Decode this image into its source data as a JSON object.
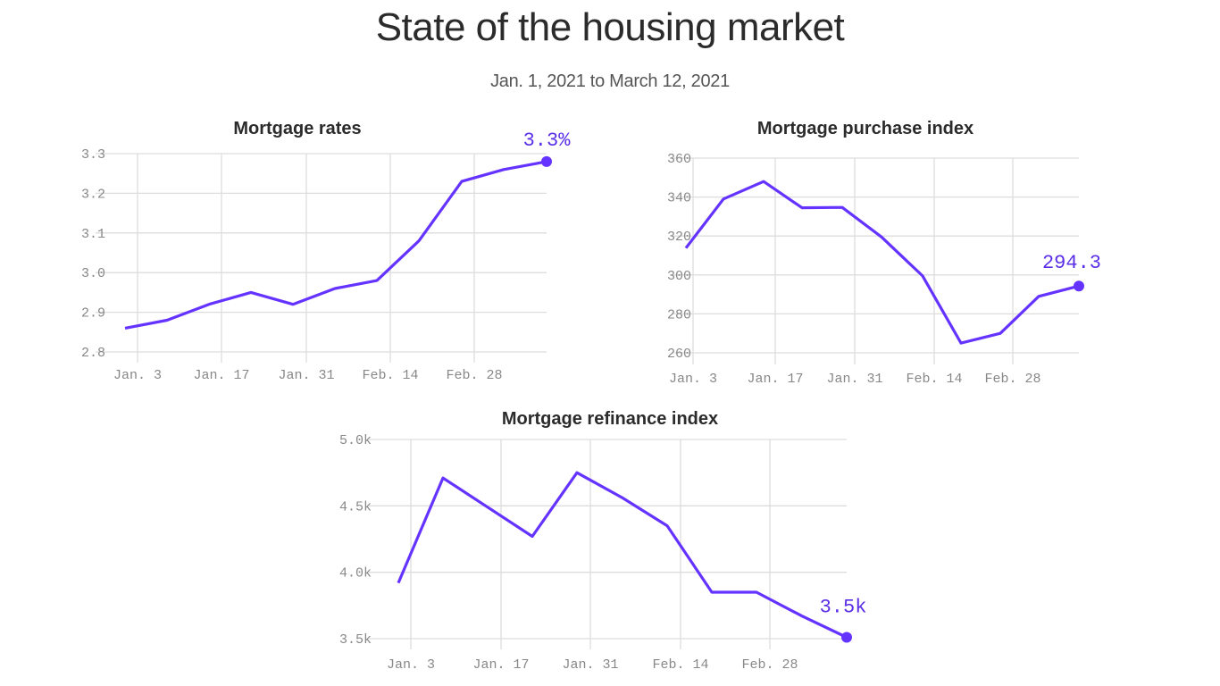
{
  "header": {
    "title": "State of the housing market",
    "subtitle": "Jan. 1, 2021 to March 12, 2021"
  },
  "colors": {
    "line": "#6533ff",
    "label": "#5a2ee6",
    "grid": "#dddddd",
    "tick": "#888888"
  },
  "chart_data": [
    {
      "type": "line",
      "title": "Mortgage rates",
      "xlabel": "",
      "ylabel": "",
      "x_ticks": [
        "Jan. 3",
        "Jan. 17",
        "Jan. 31",
        "Feb. 14",
        "Feb. 28"
      ],
      "y_ticks": [
        "3.3",
        "3.2",
        "3.1",
        "3.0",
        "2.9",
        "2.8"
      ],
      "ylim": [
        2.8,
        3.3
      ],
      "grid": true,
      "x": [
        "Dec. 31",
        "Jan. 7",
        "Jan. 14",
        "Jan. 21",
        "Jan. 28",
        "Feb. 4",
        "Feb. 11",
        "Feb. 18",
        "Feb. 25",
        "Mar. 4",
        "Mar. 11"
      ],
      "values": [
        2.86,
        2.88,
        2.92,
        2.95,
        2.92,
        2.96,
        2.98,
        3.08,
        3.23,
        3.26,
        3.28
      ],
      "end_label": "3.3%"
    },
    {
      "type": "line",
      "title": "Mortgage purchase index",
      "xlabel": "",
      "ylabel": "",
      "x_ticks": [
        "Jan. 3",
        "Jan. 17",
        "Jan. 31",
        "Feb. 14",
        "Feb. 28"
      ],
      "y_ticks": [
        "360",
        "340",
        "320",
        "300",
        "280",
        "260"
      ],
      "ylim": [
        260,
        360
      ],
      "grid": true,
      "x": [
        "Jan. 1",
        "Jan. 8",
        "Jan. 15",
        "Jan. 22",
        "Jan. 29",
        "Feb. 5",
        "Feb. 12",
        "Feb. 19",
        "Feb. 26",
        "Mar. 5",
        "Mar. 12"
      ],
      "values": [
        313.8,
        339,
        348,
        334.5,
        334.7,
        319.5,
        299.5,
        265,
        270,
        289,
        294.3
      ],
      "end_label": "294.3"
    },
    {
      "type": "line",
      "title": "Mortgage refinance index",
      "xlabel": "",
      "ylabel": "",
      "x_ticks": [
        "Jan. 3",
        "Jan. 17",
        "Jan. 31",
        "Feb. 14",
        "Feb. 28"
      ],
      "y_ticks": [
        "5.0k",
        "4.5k",
        "4.0k",
        "3.5k"
      ],
      "ylim": [
        3500,
        5000
      ],
      "grid": true,
      "x": [
        "Jan. 1",
        "Jan. 8",
        "Jan. 15",
        "Jan. 22",
        "Jan. 29",
        "Feb. 5",
        "Feb. 12",
        "Feb. 19",
        "Feb. 26",
        "Mar. 5",
        "Mar. 12"
      ],
      "values": [
        3920,
        4710,
        4490,
        4270,
        4750,
        4560,
        4350,
        3850,
        3850,
        3670,
        3510
      ],
      "end_label": "3.5k"
    }
  ]
}
